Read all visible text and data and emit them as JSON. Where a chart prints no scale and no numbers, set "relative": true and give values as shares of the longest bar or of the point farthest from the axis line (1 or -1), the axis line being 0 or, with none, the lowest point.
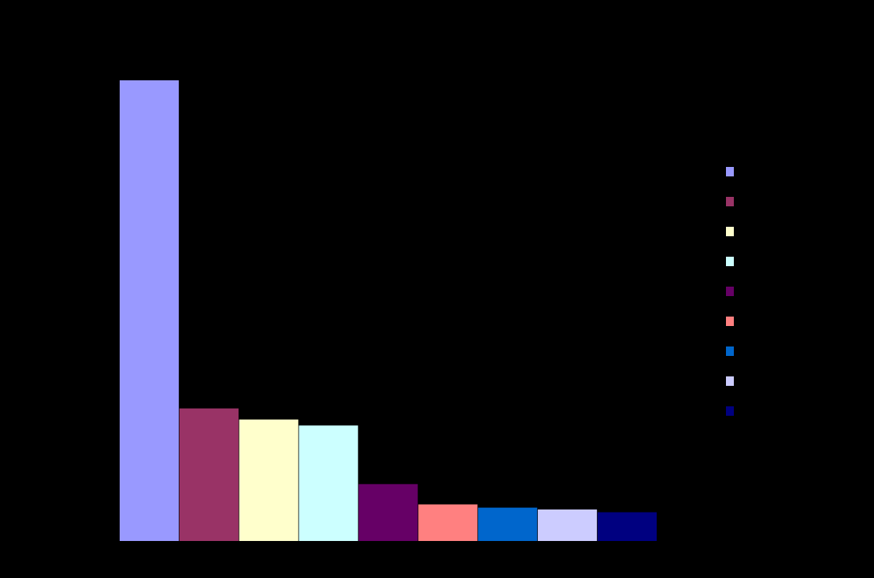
{
  "chart_data": {
    "type": "bar",
    "relative": true,
    "categories": [
      null,
      null,
      null,
      null,
      null,
      null,
      null,
      null,
      null
    ],
    "values": [
      1,
      0.289,
      0.265,
      0.252,
      0.125,
      0.081,
      0.074,
      0.07,
      0.064
    ],
    "colors": [
      "#9999ff",
      "#993366",
      "#ffffcc",
      "#ccffff",
      "#660066",
      "#ff8080",
      "#0066cc",
      "#ccccff",
      "#000080"
    ]
  }
}
